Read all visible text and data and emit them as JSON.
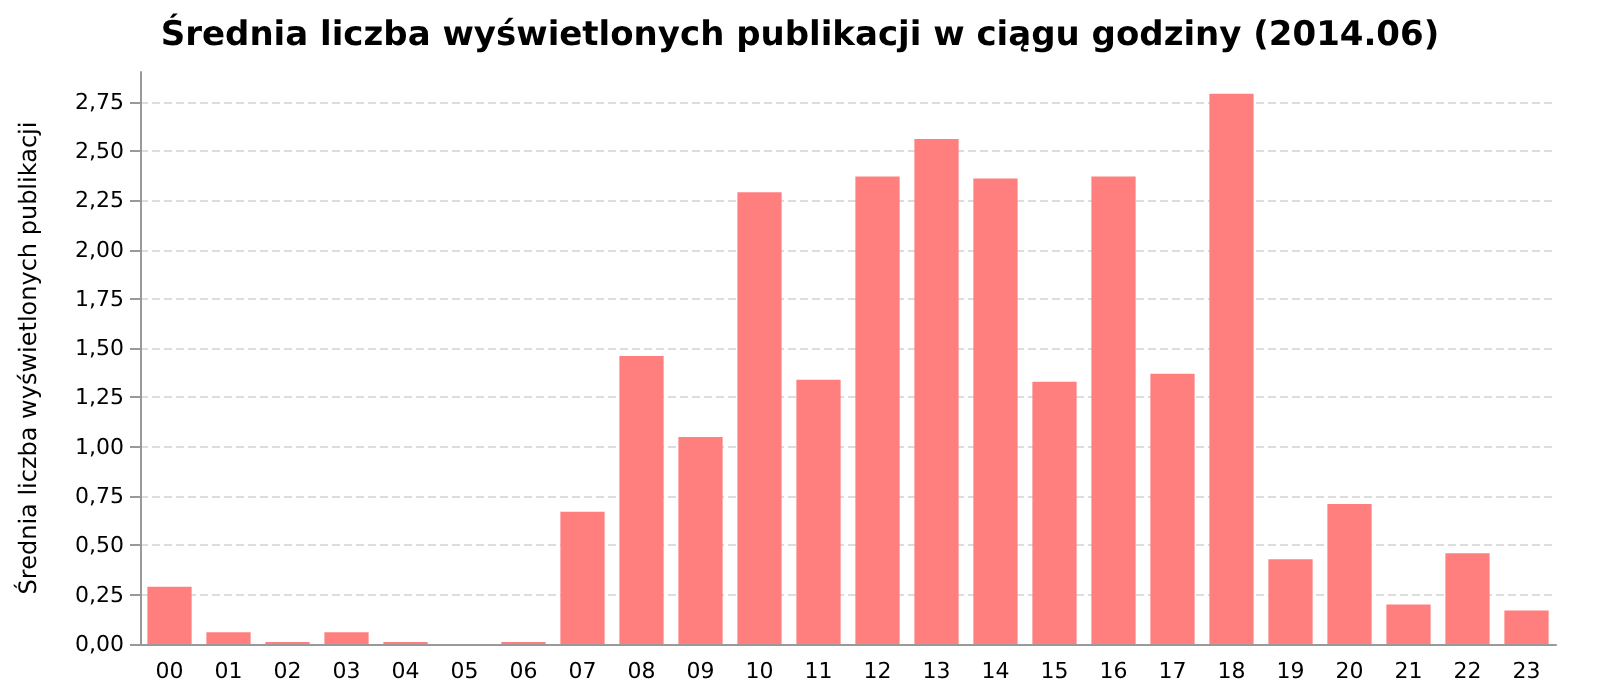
{
  "chart_data": {
    "type": "bar",
    "title": "Średnia liczba wyświetlonych publikacji w ciągu godziny (2014.06)",
    "ylabel": "Średnia liczba wyświetlonych publikacji",
    "categories": [
      "00",
      "01",
      "02",
      "03",
      "04",
      "05",
      "06",
      "07",
      "08",
      "09",
      "10",
      "11",
      "12",
      "13",
      "14",
      "15",
      "16",
      "17",
      "18",
      "19",
      "20",
      "21",
      "22",
      "23"
    ],
    "values": [
      0.29,
      0.06,
      0.01,
      0.06,
      0.01,
      0,
      0.01,
      0.67,
      1.46,
      1.05,
      2.29,
      1.34,
      2.37,
      2.56,
      2.36,
      1.33,
      2.37,
      1.37,
      2.79,
      0.43,
      0.71,
      0.2,
      0.46,
      0.17
    ],
    "color": "#ff7f7f",
    "ylim": [
      0,
      2.9
    ],
    "yticks": [
      {
        "value": 0,
        "label": "0,00"
      },
      {
        "value": 0.25,
        "label": "0,25"
      },
      {
        "value": 0.5,
        "label": "0,50"
      },
      {
        "value": 0.75,
        "label": "0,75"
      },
      {
        "value": 1,
        "label": "1,00"
      },
      {
        "value": 1.25,
        "label": "1,25"
      },
      {
        "value": 1.5,
        "label": "1,50"
      },
      {
        "value": 1.75,
        "label": "1,75"
      },
      {
        "value": 2,
        "label": "2,00"
      },
      {
        "value": 2.25,
        "label": "2,25"
      },
      {
        "value": 2.5,
        "label": "2,50"
      },
      {
        "value": 2.75,
        "label": "2,75"
      }
    ],
    "grid": "y"
  }
}
